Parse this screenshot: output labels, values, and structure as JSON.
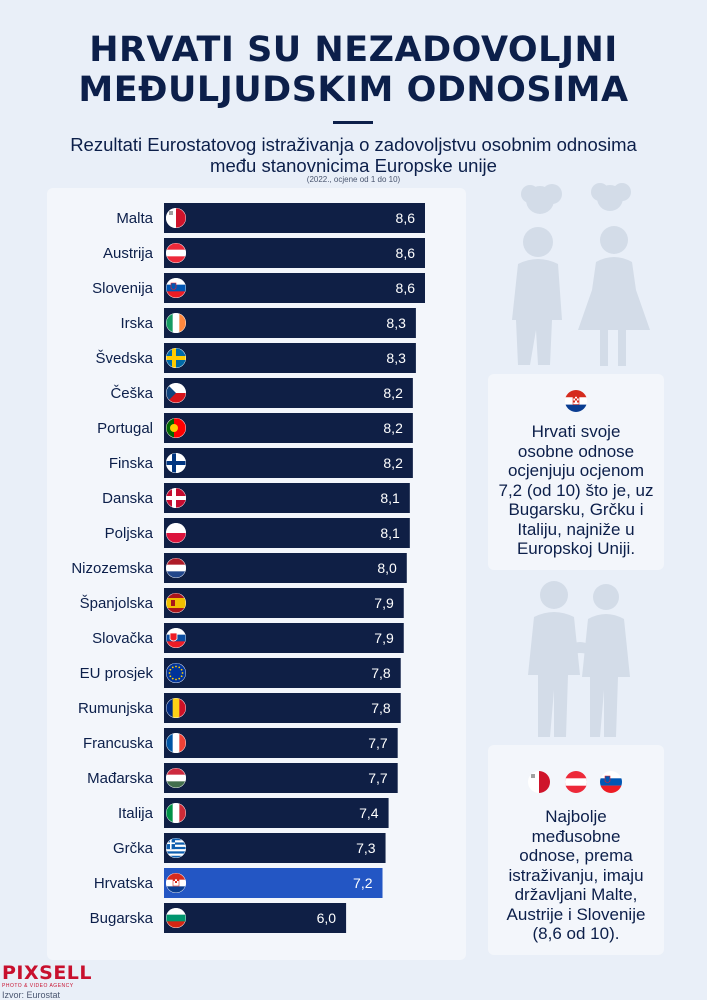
{
  "header": {
    "title_line1": "HRVATI SU NEZADOVOLJNI",
    "title_line2": "MEĐULJUDSKIM ODNOSIMA",
    "subtitle_line1": "Rezultati Eurostatovog istraživanja o zadovoljstvu osobnim odnosima",
    "subtitle_line2": "među stanovnicima Europske unije",
    "note": "(2022., ocjene od 1 do 10)"
  },
  "chart_data": {
    "type": "bar",
    "orientation": "horizontal",
    "categories": [
      "Malta",
      "Austrija",
      "Slovenija",
      "Irska",
      "Švedska",
      "Češka",
      "Portugal",
      "Finska",
      "Danska",
      "Poljska",
      "Nizozemska",
      "Španjolska",
      "Slovačka",
      "EU prosjek",
      "Rumunjska",
      "Francuska",
      "Mađarska",
      "Italija",
      "Grčka",
      "Hrvatska",
      "Bugarska"
    ],
    "values": [
      8.6,
      8.6,
      8.6,
      8.3,
      8.3,
      8.2,
      8.2,
      8.2,
      8.1,
      8.1,
      8.0,
      7.9,
      7.9,
      7.8,
      7.8,
      7.7,
      7.7,
      7.4,
      7.3,
      7.2,
      6.0
    ],
    "value_labels": [
      "8,6",
      "8,6",
      "8,6",
      "8,3",
      "8,3",
      "8,2",
      "8,2",
      "8,2",
      "8,1",
      "8,1",
      "8,0",
      "7,9",
      "7,9",
      "7,8",
      "7,8",
      "7,7",
      "7,7",
      "7,4",
      "7,3",
      "7,2",
      "6,0"
    ],
    "flags": [
      "malta",
      "austria",
      "slovenia",
      "ireland",
      "sweden",
      "czechia",
      "portugal",
      "finland",
      "denmark",
      "poland",
      "netherlands",
      "spain",
      "slovakia",
      "eu",
      "romania",
      "france",
      "hungary",
      "italy",
      "greece",
      "croatia",
      "bulgaria"
    ],
    "highlight": "Hrvatska",
    "colors": {
      "bar": "#0f1f45",
      "highlight": "#2356c4",
      "label": "#ffffff"
    }
  },
  "card_croatia": {
    "flag": "croatia",
    "lines": [
      "Hrvati svoje",
      "osobne odnose",
      "ocjenjuju ocjenom",
      "7,2 (od 10) što je, uz",
      "Bugarsku, Grčku i",
      "Italiju, najniže u",
      "Europskoj Uniji."
    ]
  },
  "card_top": {
    "flags": [
      "malta",
      "austria",
      "slovenia"
    ],
    "lines": [
      "Najbolje",
      "međusobne",
      "odnose, prema",
      "istraživanju, imaju",
      "državljani Malte,",
      "Austrije i Slovenije",
      "(8,6 od 10)."
    ]
  },
  "footer": {
    "logo": "PIXSELL",
    "logo_sub": "PHOTO & VIDEO AGENCY",
    "source": "Izvor: Eurostat"
  }
}
